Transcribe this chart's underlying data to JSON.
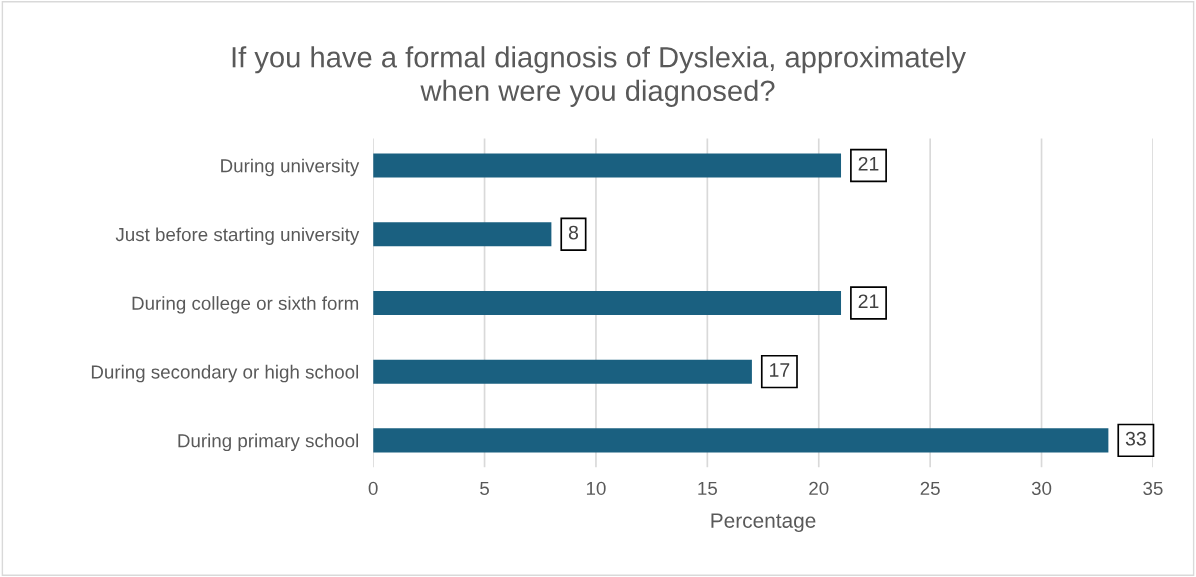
{
  "chart_data": {
    "type": "bar",
    "orientation": "horizontal",
    "title": "If you have a formal diagnosis of Dyslexia, approximately\nwhen were you diagnosed?",
    "xlabel": "Percentage",
    "categories": [
      "During university",
      "Just before starting university",
      "During college or sixth form",
      "During secondary or high school",
      "During primary school"
    ],
    "values": [
      21,
      8,
      21,
      17,
      33
    ],
    "color": "#1a6080",
    "xlim": [
      0,
      35
    ],
    "xticks": [
      0,
      5,
      10,
      15,
      20,
      25,
      30,
      35
    ],
    "grid": "x",
    "data_labels": true
  }
}
